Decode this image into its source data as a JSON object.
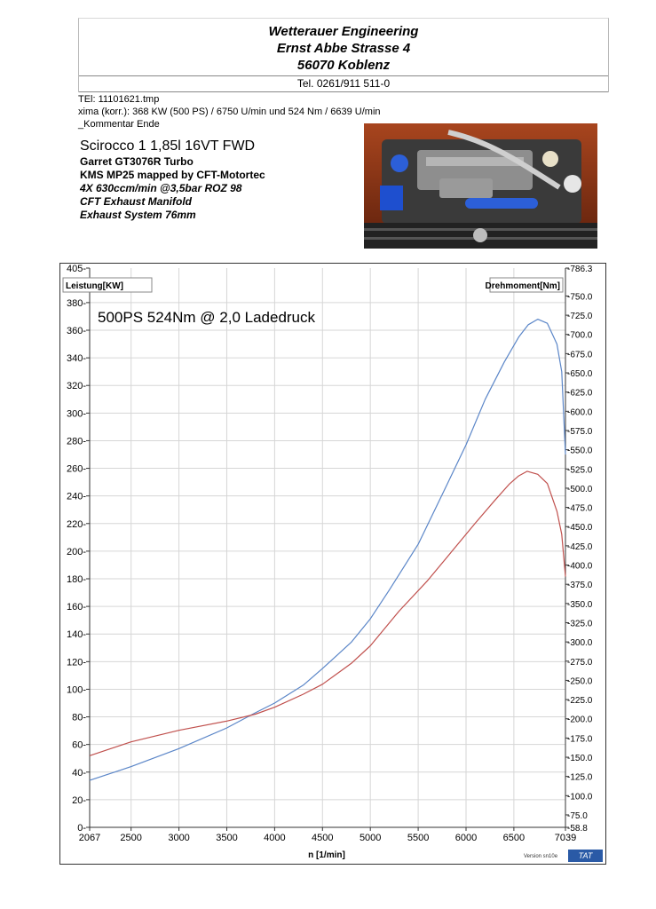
{
  "header": {
    "company": "Wetterauer Engineering",
    "street": "Ernst Abbe Strasse 4",
    "city": "56070 Koblenz",
    "phone": "Tel. 0261/911 511-0"
  },
  "run": {
    "file": "TEl: 11101621.tmp",
    "maxima": "xima (korr.):  368 KW (500 PS) /  6750 U/min  und   524 Nm /  6639 U/min",
    "comment": "_Kommentar  Ende"
  },
  "vehicle": {
    "title": "Scirocco 1  1,85l 16VT FWD",
    "lines": [
      "Garret GT3076R Turbo",
      "KMS MP25 mapped by CFT-Motortec",
      "4X 630ccm/min @3,5bar ROZ 98",
      "CFT Exhaust Manifold",
      "Exhaust System 76mm"
    ]
  },
  "footer": {
    "version": "Version sn10e",
    "badge": "TAT"
  },
  "chart_data": {
    "type": "line",
    "annotation": "500PS  524Nm @ 2,0 Ladedruck",
    "xlabel": "n  [1/min]",
    "ylabel_left": "Leistung[KW]",
    "ylabel_right": "Drehmoment[Nm]",
    "xlim": [
      2067,
      7039
    ],
    "ylim_left": [
      0,
      405
    ],
    "ylim_right": [
      58.8,
      786.3
    ],
    "x_ticks": [
      2067,
      2500,
      3000,
      3500,
      4000,
      4500,
      5000,
      5500,
      6000,
      6500,
      7039
    ],
    "y_left_ticks": [
      0,
      20,
      40,
      60,
      80,
      100,
      120,
      140,
      160,
      180,
      200,
      220,
      240,
      260,
      280,
      300,
      320,
      340,
      360,
      380,
      405
    ],
    "y_right_ticks": [
      58.8,
      75,
      100,
      125,
      150,
      175,
      200,
      225,
      250,
      275,
      300,
      325,
      350,
      375,
      400,
      425,
      450,
      475,
      500,
      525,
      550,
      575,
      600,
      625,
      650,
      675,
      700,
      725,
      750,
      786.3
    ],
    "y_right_tick_labels": [
      "-58.8",
      "-75.0",
      "-100.0",
      "-125.0",
      "-150.0",
      "-175.0",
      "-200.0",
      "-225.0",
      "-250.0",
      "-275.0",
      "-300.0",
      "-325.0",
      "-350.0",
      "-375.0",
      "-400.0",
      "-425.0",
      "-450.0",
      "-475.0",
      "-500.0",
      "-525.0",
      "-550.0",
      "-575.0",
      "-600.0",
      "-625.0",
      "-650.0",
      "-675.0",
      "-700.0",
      "-725.0",
      "-750.0",
      "-786.3"
    ],
    "grid": true,
    "series": [
      {
        "name": "Leistung[KW]",
        "axis": "left",
        "color": "#5b86c8",
        "x": [
          2067,
          2500,
          3000,
          3500,
          3800,
          4000,
          4300,
          4500,
          4800,
          5000,
          5200,
          5500,
          5800,
          6000,
          6200,
          6400,
          6550,
          6650,
          6750,
          6850,
          6950,
          7000,
          7039
        ],
        "y": [
          34,
          44,
          57,
          72,
          83,
          90,
          103,
          115,
          134,
          151,
          172,
          205,
          248,
          277,
          310,
          337,
          355,
          364,
          368,
          365,
          350,
          330,
          270
        ]
      },
      {
        "name": "Drehmoment[Nm]",
        "axis": "right",
        "color": "#c0504d",
        "x": [
          2067,
          2500,
          3000,
          3500,
          3800,
          4000,
          4300,
          4500,
          4800,
          5000,
          5300,
          5600,
          5900,
          6100,
          6300,
          6450,
          6550,
          6639,
          6750,
          6850,
          6950,
          7000,
          7039
        ],
        "y": [
          152,
          170,
          185,
          197,
          206,
          215,
          232,
          245,
          272,
          295,
          340,
          380,
          425,
          455,
          484,
          505,
          516,
          522,
          518,
          506,
          470,
          440,
          385
        ]
      }
    ]
  }
}
